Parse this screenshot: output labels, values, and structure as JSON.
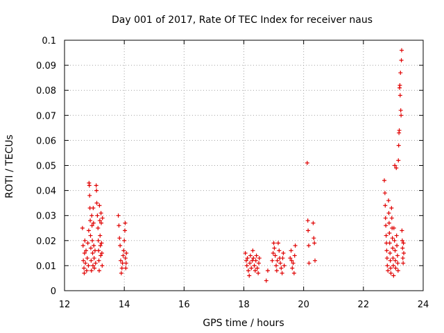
{
  "chart_data": {
    "type": "scatter",
    "title": "Day 001 of 2017, Rate Of TEC Index for receiver naus",
    "xlabel": "GPS time / hours",
    "ylabel": "ROTI / TECUs",
    "xlim": [
      12,
      24
    ],
    "ylim": [
      0,
      0.1
    ],
    "xticks": [
      "12",
      "14",
      "16",
      "18",
      "20",
      "22",
      "24"
    ],
    "yticks": [
      "0",
      "0.01",
      "0.02",
      "0.03",
      "0.04",
      "0.05",
      "0.06",
      "0.07",
      "0.08",
      "0.09",
      "0.1"
    ],
    "grid": true,
    "marker": "plus",
    "color": "#e00000",
    "points": [
      [
        12.6,
        0.025
      ],
      [
        12.62,
        0.018
      ],
      [
        12.63,
        0.012
      ],
      [
        12.65,
        0.009
      ],
      [
        12.66,
        0.007
      ],
      [
        12.67,
        0.015
      ],
      [
        12.68,
        0.02
      ],
      [
        12.7,
        0.011
      ],
      [
        12.72,
        0.016
      ],
      [
        12.74,
        0.008
      ],
      [
        12.76,
        0.013
      ],
      [
        12.78,
        0.019
      ],
      [
        12.8,
        0.01
      ],
      [
        12.81,
        0.024
      ],
      [
        12.82,
        0.043
      ],
      [
        12.83,
        0.042
      ],
      [
        12.84,
        0.038
      ],
      [
        12.85,
        0.033
      ],
      [
        12.86,
        0.028
      ],
      [
        12.87,
        0.022
      ],
      [
        12.88,
        0.017
      ],
      [
        12.89,
        0.012
      ],
      [
        12.9,
        0.008
      ],
      [
        12.91,
        0.03
      ],
      [
        12.92,
        0.026
      ],
      [
        12.93,
        0.02
      ],
      [
        12.94,
        0.015
      ],
      [
        12.95,
        0.01
      ],
      [
        12.96,
        0.033
      ],
      [
        12.97,
        0.027
      ],
      [
        12.98,
        0.018
      ],
      [
        12.99,
        0.013
      ],
      [
        13.0,
        0.009
      ],
      [
        13.02,
        0.016
      ],
      [
        13.04,
        0.011
      ],
      [
        13.06,
        0.042
      ],
      [
        13.07,
        0.04
      ],
      [
        13.08,
        0.035
      ],
      [
        13.1,
        0.03
      ],
      [
        13.12,
        0.025
      ],
      [
        13.13,
        0.02
      ],
      [
        13.14,
        0.016
      ],
      [
        13.15,
        0.012
      ],
      [
        13.16,
        0.008
      ],
      [
        13.17,
        0.034
      ],
      [
        13.18,
        0.028
      ],
      [
        13.19,
        0.022
      ],
      [
        13.2,
        0.018
      ],
      [
        13.21,
        0.014
      ],
      [
        13.22,
        0.031
      ],
      [
        13.23,
        0.027
      ],
      [
        13.24,
        0.019
      ],
      [
        13.25,
        0.015
      ],
      [
        13.26,
        0.01
      ],
      [
        13.27,
        0.029
      ],
      [
        13.8,
        0.03
      ],
      [
        13.82,
        0.026
      ],
      [
        13.84,
        0.021
      ],
      [
        13.86,
        0.018
      ],
      [
        13.88,
        0.012
      ],
      [
        13.9,
        0.007
      ],
      [
        13.92,
        0.009
      ],
      [
        13.94,
        0.011
      ],
      [
        13.96,
        0.014
      ],
      [
        13.98,
        0.016
      ],
      [
        14.0,
        0.02
      ],
      [
        14.02,
        0.024
      ],
      [
        14.03,
        0.027
      ],
      [
        14.04,
        0.013
      ],
      [
        14.05,
        0.009
      ],
      [
        14.06,
        0.011
      ],
      [
        14.07,
        0.015
      ],
      [
        18.05,
        0.015
      ],
      [
        18.08,
        0.012
      ],
      [
        18.1,
        0.01
      ],
      [
        18.12,
        0.013
      ],
      [
        18.15,
        0.008
      ],
      [
        18.18,
        0.006
      ],
      [
        18.2,
        0.011
      ],
      [
        18.22,
        0.014
      ],
      [
        18.25,
        0.009
      ],
      [
        18.28,
        0.012
      ],
      [
        18.3,
        0.016
      ],
      [
        18.32,
        0.013
      ],
      [
        18.35,
        0.01
      ],
      [
        18.38,
        0.008
      ],
      [
        18.4,
        0.012
      ],
      [
        18.42,
        0.014
      ],
      [
        18.45,
        0.009
      ],
      [
        18.48,
        0.007
      ],
      [
        18.5,
        0.011
      ],
      [
        18.52,
        0.013
      ],
      [
        18.75,
        0.004
      ],
      [
        18.8,
        0.008
      ],
      [
        18.95,
        0.012
      ],
      [
        18.98,
        0.015
      ],
      [
        19.0,
        0.019
      ],
      [
        19.02,
        0.017
      ],
      [
        19.05,
        0.014
      ],
      [
        19.08,
        0.01
      ],
      [
        19.1,
        0.008
      ],
      [
        19.12,
        0.012
      ],
      [
        19.15,
        0.019
      ],
      [
        19.18,
        0.016
      ],
      [
        19.2,
        0.013
      ],
      [
        19.22,
        0.011
      ],
      [
        19.25,
        0.009
      ],
      [
        19.28,
        0.007
      ],
      [
        19.3,
        0.013
      ],
      [
        19.32,
        0.015
      ],
      [
        19.35,
        0.01
      ],
      [
        19.55,
        0.013
      ],
      [
        19.58,
        0.016
      ],
      [
        19.6,
        0.012
      ],
      [
        19.62,
        0.009
      ],
      [
        19.65,
        0.011
      ],
      [
        19.68,
        0.007
      ],
      [
        19.7,
        0.014
      ],
      [
        19.72,
        0.018
      ],
      [
        20.12,
        0.051
      ],
      [
        20.14,
        0.028
      ],
      [
        20.15,
        0.024
      ],
      [
        20.17,
        0.018
      ],
      [
        20.18,
        0.011
      ],
      [
        20.32,
        0.027
      ],
      [
        20.34,
        0.021
      ],
      [
        20.36,
        0.019
      ],
      [
        20.38,
        0.012
      ],
      [
        22.7,
        0.044
      ],
      [
        22.72,
        0.039
      ],
      [
        22.73,
        0.034
      ],
      [
        22.74,
        0.029
      ],
      [
        22.75,
        0.026
      ],
      [
        22.76,
        0.022
      ],
      [
        22.77,
        0.019
      ],
      [
        22.78,
        0.016
      ],
      [
        22.79,
        0.013
      ],
      [
        22.8,
        0.01
      ],
      [
        22.82,
        0.008
      ],
      [
        22.84,
        0.036
      ],
      [
        22.85,
        0.031
      ],
      [
        22.86,
        0.027
      ],
      [
        22.87,
        0.023
      ],
      [
        22.88,
        0.019
      ],
      [
        22.89,
        0.015
      ],
      [
        22.9,
        0.012
      ],
      [
        22.91,
        0.009
      ],
      [
        22.92,
        0.007
      ],
      [
        22.94,
        0.033
      ],
      [
        22.95,
        0.029
      ],
      [
        22.96,
        0.025
      ],
      [
        22.97,
        0.021
      ],
      [
        22.98,
        0.017
      ],
      [
        22.99,
        0.013
      ],
      [
        23.0,
        0.01
      ],
      [
        23.01,
        0.006
      ],
      [
        23.02,
        0.025
      ],
      [
        23.04,
        0.02
      ],
      [
        23.05,
        0.05
      ],
      [
        23.06,
        0.016
      ],
      [
        23.07,
        0.012
      ],
      [
        23.08,
        0.009
      ],
      [
        23.1,
        0.049
      ],
      [
        23.11,
        0.022
      ],
      [
        23.12,
        0.018
      ],
      [
        23.14,
        0.014
      ],
      [
        23.15,
        0.011
      ],
      [
        23.16,
        0.008
      ],
      [
        23.17,
        0.052
      ],
      [
        23.18,
        0.058
      ],
      [
        23.19,
        0.063
      ],
      [
        23.2,
        0.064
      ],
      [
        23.21,
        0.081
      ],
      [
        23.22,
        0.082
      ],
      [
        23.23,
        0.078
      ],
      [
        23.24,
        0.087
      ],
      [
        23.25,
        0.072
      ],
      [
        23.26,
        0.07
      ],
      [
        23.27,
        0.092
      ],
      [
        23.28,
        0.096
      ],
      [
        23.29,
        0.024
      ],
      [
        23.3,
        0.02
      ],
      [
        23.31,
        0.017
      ],
      [
        23.32,
        0.013
      ],
      [
        23.33,
        0.011
      ],
      [
        23.34,
        0.019
      ],
      [
        23.35,
        0.015
      ]
    ]
  }
}
